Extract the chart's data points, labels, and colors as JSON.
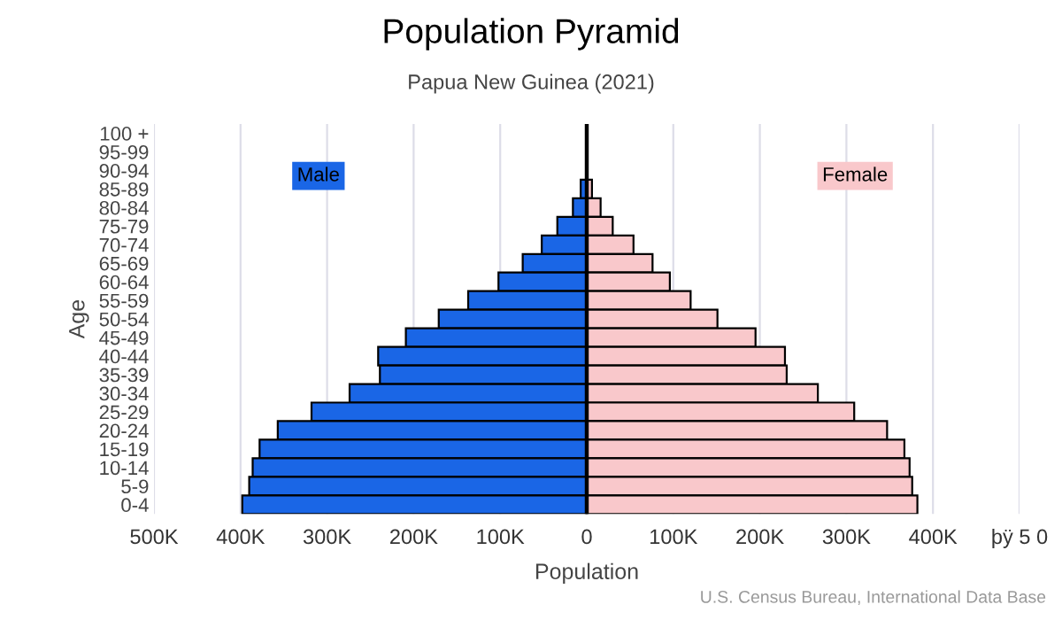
{
  "chart_data": {
    "type": "bar",
    "orientation": "horizontal",
    "title": "Population Pyramid",
    "subtitle": "Papua New Guinea (2021)",
    "xlabel": "Population",
    "ylabel": "Age",
    "categories": [
      "100 +",
      "95-99",
      "90-94",
      "85-89",
      "80-84",
      "75-79",
      "70-74",
      "65-69",
      "60-64",
      "55-59",
      "50-54",
      "45-49",
      "40-44",
      "35-39",
      "30-34",
      "25-29",
      "20-24",
      "15-19",
      "10-14",
      "5-9",
      "0-4"
    ],
    "series": [
      {
        "name": "Male",
        "color": "#1a66e6",
        "values": [
          null,
          null,
          null,
          -7000,
          -16000,
          -34000,
          -52000,
          -74000,
          -102000,
          -137000,
          -171000,
          -209000,
          -241000,
          -239000,
          -274000,
          -318000,
          -357000,
          -378000,
          -386000,
          -390000,
          -398000
        ]
      },
      {
        "name": "Female",
        "color": "#f9c8cb",
        "values": [
          null,
          null,
          null,
          6000,
          16000,
          30000,
          54000,
          76000,
          96000,
          120000,
          151000,
          195000,
          229000,
          231000,
          267000,
          309000,
          347000,
          367000,
          373000,
          376000,
          382000
        ]
      }
    ],
    "stacked": true,
    "xlim": [
      -500000,
      500000
    ],
    "xticks": [
      {
        "value": -500000,
        "label": "500K"
      },
      {
        "value": -400000,
        "label": "400K"
      },
      {
        "value": -300000,
        "label": "300K"
      },
      {
        "value": -200000,
        "label": "200K"
      },
      {
        "value": -100000,
        "label": "100K"
      },
      0,
      {
        "value": 100000,
        "label": "100K"
      },
      {
        "value": 200000,
        "label": "200K"
      },
      {
        "value": 300000,
        "label": "300K"
      },
      {
        "value": 400000,
        "label": "400K"
      },
      {
        "value": 500000,
        "label": "þÿ 5 0"
      }
    ],
    "grid": "x",
    "ref_lines": [
      {
        "axis": "x",
        "value": 0,
        "color": "#000000"
      }
    ],
    "annotations": [
      "U.S. Census Bureau, International Data Base"
    ]
  }
}
